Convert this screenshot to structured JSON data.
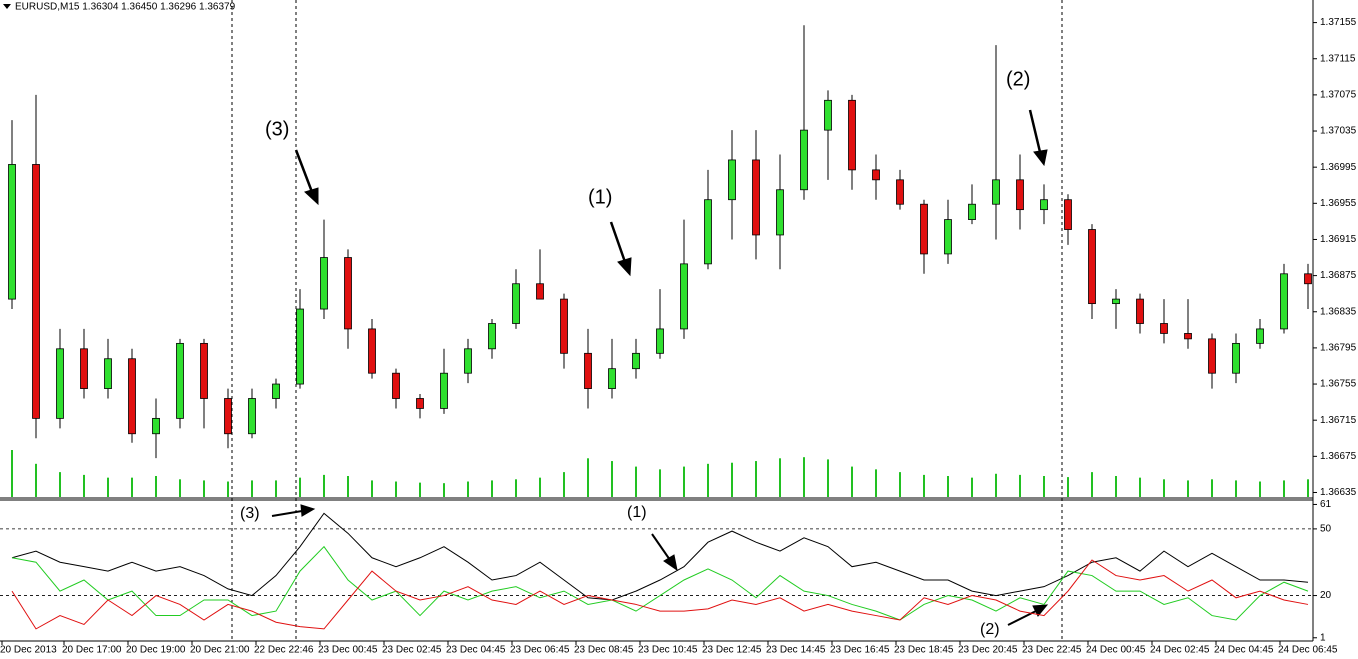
{
  "chart_data": [
    {
      "type": "candlestick",
      "title": "EURUSD,M15  1.36304 1.36450 1.36296 1.36379",
      "ylim": [
        1.3663,
        1.3718
      ],
      "yticks": [
        1.37155,
        1.37115,
        1.37075,
        1.37035,
        1.36995,
        1.36955,
        1.36915,
        1.36875,
        1.36835,
        1.36795,
        1.36755,
        1.36715,
        1.36675,
        1.36635
      ],
      "x_labels": [
        "20 Dec 2013",
        "20 Dec 17:00",
        "20 Dec 19:00",
        "20 Dec 21:00",
        "22 Dec 22:46",
        "23 Dec 00:45",
        "23 Dec 02:45",
        "23 Dec 04:45",
        "23 Dec 06:45",
        "23 Dec 08:45",
        "23 Dec 10:45",
        "23 Dec 12:45",
        "23 Dec 14:45",
        "23 Dec 16:45",
        "23 Dec 18:45",
        "23 Dec 20:45",
        "23 Dec 22:45",
        "24 Dec 00:45",
        "24 Dec 02:45",
        "24 Dec 04:45",
        "24 Dec 06:45"
      ],
      "up_color": "#2fe02f",
      "down_color": "#e01010",
      "volume_color": "#22c022",
      "open": [
        1.36849,
        1.36998,
        1.36717,
        1.36794,
        1.3675,
        1.36783,
        1.367,
        1.36717,
        1.368,
        1.36739,
        1.367,
        1.36739,
        1.36755,
        1.36838,
        1.36895,
        1.36816,
        1.36767,
        1.36739,
        1.36728,
        1.36767,
        1.36794,
        1.36822,
        1.36866,
        1.36849,
        1.36789,
        1.3675,
        1.36772,
        1.36789,
        1.36816,
        1.36888,
        1.36959,
        1.37003,
        1.3692,
        1.3697,
        1.37036,
        1.37069,
        1.36992,
        1.36981,
        1.36954,
        1.36899,
        1.36937,
        1.36954,
        1.36981,
        1.36948,
        1.36959,
        1.36926,
        1.36844,
        1.36849,
        1.36822,
        1.36811,
        1.36805,
        1.36767,
        1.368,
        1.36816,
        1.36877
      ],
      "high": [
        1.37047,
        1.37075,
        1.36816,
        1.36816,
        1.36805,
        1.36794,
        1.36739,
        1.36805,
        1.36805,
        1.3675,
        1.3675,
        1.36761,
        1.3686,
        1.36937,
        1.36904,
        1.36827,
        1.36772,
        1.36744,
        1.36794,
        1.36805,
        1.36827,
        1.36882,
        1.36904,
        1.36855,
        1.36816,
        1.36805,
        1.36805,
        1.3686,
        1.36937,
        1.36992,
        1.37036,
        1.37036,
        1.37009,
        1.37152,
        1.3708,
        1.37075,
        1.37009,
        1.36992,
        1.36959,
        1.36959,
        1.36976,
        1.3713,
        1.37009,
        1.36976,
        1.36965,
        1.36932,
        1.3686,
        1.36855,
        1.36849,
        1.36849,
        1.36811,
        1.36811,
        1.36827,
        1.36888,
        1.36888
      ],
      "low": [
        1.36838,
        1.36695,
        1.36706,
        1.36739,
        1.36739,
        1.3669,
        1.36673,
        1.36706,
        1.36706,
        1.36684,
        1.36695,
        1.36728,
        1.3675,
        1.36827,
        1.36794,
        1.36761,
        1.36728,
        1.36717,
        1.36722,
        1.36756,
        1.36783,
        1.36816,
        1.36849,
        1.36772,
        1.36728,
        1.36739,
        1.36761,
        1.36783,
        1.36805,
        1.36882,
        1.36915,
        1.36893,
        1.36882,
        1.36959,
        1.36981,
        1.3697,
        1.36959,
        1.36948,
        1.36877,
        1.36888,
        1.36932,
        1.36915,
        1.36926,
        1.36932,
        1.36909,
        1.36827,
        1.36816,
        1.36811,
        1.368,
        1.36794,
        1.3675,
        1.36756,
        1.36794,
        1.36811,
        1.36838
      ],
      "close": [
        1.36998,
        1.36717,
        1.36794,
        1.3675,
        1.36783,
        1.367,
        1.36717,
        1.368,
        1.36739,
        1.367,
        1.36739,
        1.36755,
        1.36838,
        1.36895,
        1.36816,
        1.36767,
        1.36739,
        1.36728,
        1.36767,
        1.36794,
        1.36822,
        1.36866,
        1.36849,
        1.36789,
        1.3675,
        1.36772,
        1.36789,
        1.36816,
        1.36888,
        1.36959,
        1.37003,
        1.3692,
        1.3697,
        1.37036,
        1.37069,
        1.36992,
        1.36981,
        1.36954,
        1.36899,
        1.36937,
        1.36954,
        1.36981,
        1.36948,
        1.36959,
        1.36926,
        1.36844,
        1.36849,
        1.36822,
        1.36811,
        1.36805,
        1.36767,
        1.368,
        1.36816,
        1.36877,
        1.36866
      ],
      "volume": [
        85,
        60,
        45,
        40,
        35,
        35,
        38,
        32,
        30,
        28,
        30,
        30,
        35,
        40,
        38,
        30,
        28,
        26,
        25,
        28,
        30,
        32,
        35,
        45,
        70,
        65,
        55,
        50,
        55,
        60,
        62,
        65,
        70,
        72,
        68,
        55,
        50,
        45,
        40,
        38,
        35,
        42,
        40,
        38,
        36,
        45,
        38,
        35,
        32,
        30,
        32,
        30,
        28,
        30,
        32
      ],
      "annotations": [
        "(3)",
        "(1)",
        "(2)"
      ]
    },
    {
      "type": "line",
      "ylim": [
        0,
        63
      ],
      "yticks": [
        61,
        50,
        20,
        1
      ],
      "series": [
        {
          "color": "#000000",
          "values": [
            37,
            40,
            35,
            33,
            31,
            35,
            31,
            33,
            29,
            23,
            20,
            29,
            42,
            57,
            48,
            37,
            33,
            37,
            42,
            35,
            27,
            29,
            35,
            27,
            19,
            18,
            22,
            27,
            33,
            44,
            49,
            44,
            40,
            46,
            42,
            33,
            35,
            31,
            27,
            27,
            22,
            20,
            22,
            24,
            29,
            35,
            37,
            31,
            40,
            33,
            39,
            33,
            27,
            27,
            26
          ]
        },
        {
          "color": "#22cc22",
          "values": [
            37,
            35,
            22,
            27,
            18,
            22,
            11,
            11,
            18,
            18,
            11,
            13,
            31,
            42,
            27,
            18,
            22,
            11,
            22,
            18,
            22,
            24,
            19,
            22,
            16,
            18,
            13,
            20,
            27,
            32,
            27,
            19,
            29,
            22,
            20,
            16,
            13,
            9,
            16,
            20,
            18,
            13,
            19,
            16,
            31,
            29,
            22,
            22,
            16,
            19,
            11,
            9,
            20,
            26,
            22
          ]
        },
        {
          "color": "#e01010",
          "values": [
            22,
            5,
            11,
            7,
            18,
            11,
            20,
            16,
            9,
            16,
            13,
            8,
            6,
            5,
            18,
            31,
            22,
            18,
            20,
            24,
            18,
            16,
            22,
            16,
            20,
            18,
            16,
            13,
            13,
            14,
            18,
            16,
            19,
            13,
            16,
            13,
            11,
            9,
            19,
            16,
            20,
            18,
            13,
            11,
            22,
            36,
            29,
            27,
            29,
            22,
            27,
            19,
            22,
            18,
            16
          ]
        }
      ],
      "annotations": [
        "(3)",
        "(1)",
        "(2)"
      ]
    }
  ]
}
